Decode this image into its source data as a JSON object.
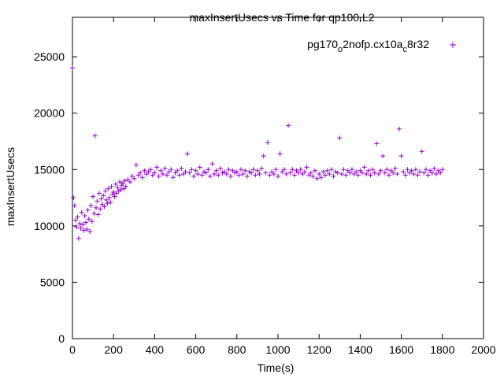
{
  "chart_data": {
    "type": "scatter",
    "title": "maxInsertUsecs vs Time for qp100.L2",
    "xlabel": "Time(s)",
    "ylabel": "maxInsertUsecs",
    "xlim": [
      0,
      2000
    ],
    "ylim": [
      0,
      28500
    ],
    "xticks": [
      0,
      200,
      400,
      600,
      800,
      1000,
      1200,
      1400,
      1600,
      1800,
      2000
    ],
    "yticks": [
      0,
      5000,
      10000,
      15000,
      20000,
      25000
    ],
    "grid": false,
    "legend_position": "top-right",
    "marker": "+",
    "series": [
      {
        "name": "pg170_o2nofp.cx10a_c8r32",
        "legend_parts": {
          "t1": "pg170",
          "s1": "o",
          "t2": "2nofp.cx10a",
          "s2": "c",
          "t3": "8r32"
        },
        "color": "#9400d3",
        "points": [
          [
            0,
            24000
          ],
          [
            5,
            12500
          ],
          [
            10,
            11800
          ],
          [
            15,
            10500
          ],
          [
            20,
            9900
          ],
          [
            25,
            10800
          ],
          [
            30,
            8900
          ],
          [
            35,
            10200
          ],
          [
            40,
            9800
          ],
          [
            45,
            11200
          ],
          [
            50,
            10100
          ],
          [
            55,
            9600
          ],
          [
            60,
            10900
          ],
          [
            65,
            10300
          ],
          [
            70,
            9700
          ],
          [
            75,
            11400
          ],
          [
            80,
            10600
          ],
          [
            85,
            9500
          ],
          [
            90,
            11800
          ],
          [
            95,
            10400
          ],
          [
            100,
            12600
          ],
          [
            105,
            11100
          ],
          [
            110,
            18000
          ],
          [
            115,
            11600
          ],
          [
            120,
            12200
          ],
          [
            125,
            11000
          ],
          [
            130,
            12900
          ],
          [
            135,
            11500
          ],
          [
            140,
            12400
          ],
          [
            145,
            11900
          ],
          [
            150,
            12700
          ],
          [
            155,
            11700
          ],
          [
            160,
            13100
          ],
          [
            165,
            12300
          ],
          [
            170,
            12000
          ],
          [
            175,
            13300
          ],
          [
            180,
            12500
          ],
          [
            185,
            12100
          ],
          [
            190,
            13500
          ],
          [
            195,
            12800
          ],
          [
            200,
            13000
          ],
          [
            205,
            12600
          ],
          [
            210,
            13700
          ],
          [
            215,
            12900
          ],
          [
            220,
            13400
          ],
          [
            225,
            13100
          ],
          [
            230,
            13900
          ],
          [
            235,
            13200
          ],
          [
            240,
            13600
          ],
          [
            245,
            13800
          ],
          [
            250,
            13300
          ],
          [
            255,
            14000
          ],
          [
            260,
            13500
          ],
          [
            270,
            14100
          ],
          [
            280,
            13900
          ],
          [
            290,
            14400
          ],
          [
            300,
            14200
          ],
          [
            310,
            15400
          ],
          [
            320,
            14500
          ],
          [
            330,
            14700
          ],
          [
            340,
            14300
          ],
          [
            350,
            14900
          ],
          [
            360,
            14600
          ],
          [
            370,
            14800
          ],
          [
            380,
            15000
          ],
          [
            390,
            14500
          ],
          [
            400,
            14700
          ],
          [
            410,
            15200
          ],
          [
            420,
            14400
          ],
          [
            430,
            14900
          ],
          [
            440,
            14600
          ],
          [
            450,
            15100
          ],
          [
            460,
            14500
          ],
          [
            470,
            14800
          ],
          [
            480,
            15000
          ],
          [
            490,
            14300
          ],
          [
            500,
            14700
          ],
          [
            510,
            14900
          ],
          [
            520,
            14500
          ],
          [
            530,
            15100
          ],
          [
            540,
            14600
          ],
          [
            550,
            14800
          ],
          [
            560,
            16400
          ],
          [
            570,
            14700
          ],
          [
            580,
            15000
          ],
          [
            590,
            14400
          ],
          [
            600,
            14900
          ],
          [
            610,
            14600
          ],
          [
            620,
            15200
          ],
          [
            630,
            14500
          ],
          [
            640,
            14800
          ],
          [
            650,
            14700
          ],
          [
            660,
            15000
          ],
          [
            670,
            14400
          ],
          [
            680,
            15500
          ],
          [
            690,
            14600
          ],
          [
            700,
            14900
          ],
          [
            710,
            14500
          ],
          [
            720,
            15100
          ],
          [
            730,
            14700
          ],
          [
            740,
            14800
          ],
          [
            750,
            14600
          ],
          [
            760,
            15000
          ],
          [
            770,
            14400
          ],
          [
            780,
            14900
          ],
          [
            790,
            14700
          ],
          [
            800,
            14800
          ],
          [
            810,
            14500
          ],
          [
            820,
            15000
          ],
          [
            830,
            14600
          ],
          [
            840,
            14900
          ],
          [
            850,
            14400
          ],
          [
            860,
            14800
          ],
          [
            870,
            14700
          ],
          [
            880,
            15000
          ],
          [
            890,
            14500
          ],
          [
            900,
            14900
          ],
          [
            910,
            14600
          ],
          [
            920,
            15100
          ],
          [
            930,
            16200
          ],
          [
            940,
            14700
          ],
          [
            950,
            17400
          ],
          [
            960,
            14500
          ],
          [
            970,
            14800
          ],
          [
            980,
            14600
          ],
          [
            990,
            15000
          ],
          [
            1000,
            14400
          ],
          [
            1010,
            16400
          ],
          [
            1020,
            14800
          ],
          [
            1030,
            15000
          ],
          [
            1040,
            14600
          ],
          [
            1050,
            18900
          ],
          [
            1060,
            14700
          ],
          [
            1070,
            15000
          ],
          [
            1080,
            14500
          ],
          [
            1090,
            14900
          ],
          [
            1100,
            14700
          ],
          [
            1110,
            15000
          ],
          [
            1120,
            14600
          ],
          [
            1130,
            14800
          ],
          [
            1140,
            15200
          ],
          [
            1150,
            14500
          ],
          [
            1160,
            14700
          ],
          [
            1170,
            14400
          ],
          [
            1180,
            14900
          ],
          [
            1190,
            14200
          ],
          [
            1200,
            14600
          ],
          [
            1210,
            14300
          ],
          [
            1220,
            14800
          ],
          [
            1230,
            14500
          ],
          [
            1240,
            14900
          ],
          [
            1250,
            14600
          ],
          [
            1260,
            15000
          ],
          [
            1270,
            14400
          ],
          [
            1280,
            14800
          ],
          [
            1290,
            14700
          ],
          [
            1300,
            17800
          ],
          [
            1310,
            14600
          ],
          [
            1320,
            15000
          ],
          [
            1330,
            14500
          ],
          [
            1340,
            14900
          ],
          [
            1350,
            14700
          ],
          [
            1360,
            15000
          ],
          [
            1370,
            14600
          ],
          [
            1380,
            14800
          ],
          [
            1390,
            14500
          ],
          [
            1400,
            14900
          ],
          [
            1410,
            14700
          ],
          [
            1420,
            15200
          ],
          [
            1430,
            14600
          ],
          [
            1440,
            14900
          ],
          [
            1450,
            14500
          ],
          [
            1460,
            15000
          ],
          [
            1470,
            14700
          ],
          [
            1480,
            17300
          ],
          [
            1490,
            14600
          ],
          [
            1500,
            14900
          ],
          [
            1510,
            16200
          ],
          [
            1520,
            14700
          ],
          [
            1530,
            15000
          ],
          [
            1540,
            14500
          ],
          [
            1550,
            14900
          ],
          [
            1560,
            14700
          ],
          [
            1570,
            15100
          ],
          [
            1580,
            14600
          ],
          [
            1590,
            18600
          ],
          [
            1600,
            16200
          ],
          [
            1610,
            14800
          ],
          [
            1620,
            14500
          ],
          [
            1630,
            15000
          ],
          [
            1640,
            14700
          ],
          [
            1650,
            14900
          ],
          [
            1660,
            14600
          ],
          [
            1670,
            15000
          ],
          [
            1680,
            14500
          ],
          [
            1690,
            14800
          ],
          [
            1700,
            16600
          ],
          [
            1710,
            14700
          ],
          [
            1720,
            15000
          ],
          [
            1730,
            14500
          ],
          [
            1740,
            14900
          ],
          [
            1750,
            14700
          ],
          [
            1760,
            15100
          ],
          [
            1770,
            14600
          ],
          [
            1780,
            14900
          ],
          [
            1790,
            14700
          ],
          [
            1800,
            15000
          ]
        ]
      }
    ]
  }
}
